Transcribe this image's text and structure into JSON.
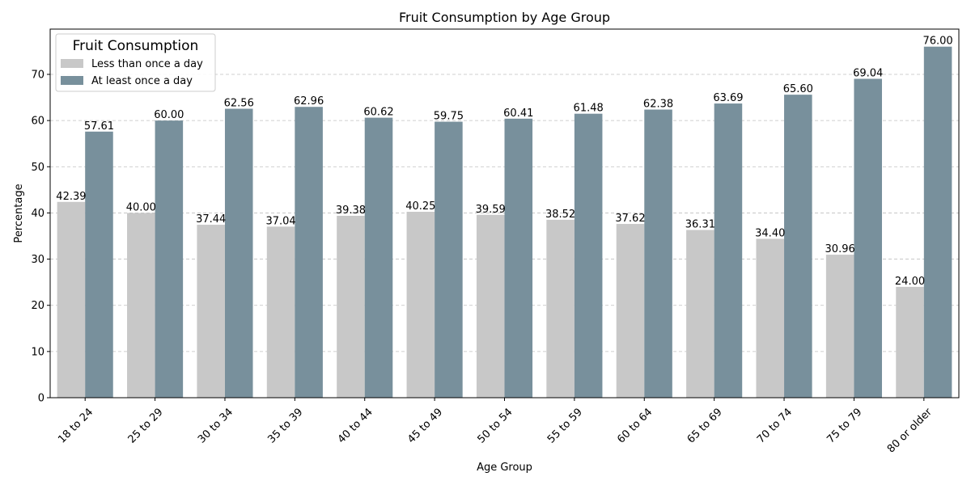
{
  "chart_data": {
    "type": "bar",
    "title": "Fruit Consumption by Age Group",
    "xlabel": "Age Group",
    "ylabel": "Percentage",
    "ylim": [
      0,
      79.8
    ],
    "yticks": [
      0,
      10,
      20,
      30,
      40,
      50,
      60,
      70
    ],
    "grid": "y-dashed",
    "legend": {
      "title": "Fruit Consumption",
      "placement": "top-left"
    },
    "categories": [
      "18 to 24",
      "25 to 29",
      "30 to 34",
      "35 to 39",
      "40 to 44",
      "45 to 49",
      "50 to 54",
      "55 to 59",
      "60 to 64",
      "65 to 69",
      "70 to 74",
      "75 to 79",
      "80 or older"
    ],
    "series": [
      {
        "name": "Less than once a day",
        "color": "#c8c8c8",
        "values": [
          42.39,
          40.0,
          37.44,
          37.04,
          39.38,
          40.25,
          39.59,
          38.52,
          37.62,
          36.31,
          34.4,
          30.96,
          24.0
        ],
        "labels": [
          "42.39",
          "40.00",
          "37.44",
          "37.04",
          "39.38",
          "40.25",
          "39.59",
          "38.52",
          "37.62",
          "36.31",
          "34.40",
          "30.96",
          "24.00"
        ]
      },
      {
        "name": "At least once a day",
        "color": "#78909c",
        "values": [
          57.61,
          60.0,
          62.56,
          62.96,
          60.62,
          59.75,
          60.41,
          61.48,
          62.38,
          63.69,
          65.6,
          69.04,
          76.0
        ],
        "labels": [
          "57.61",
          "60.00",
          "62.56",
          "62.96",
          "60.62",
          "59.75",
          "60.41",
          "61.48",
          "62.38",
          "63.69",
          "65.60",
          "69.04",
          "76.00"
        ]
      }
    ]
  }
}
